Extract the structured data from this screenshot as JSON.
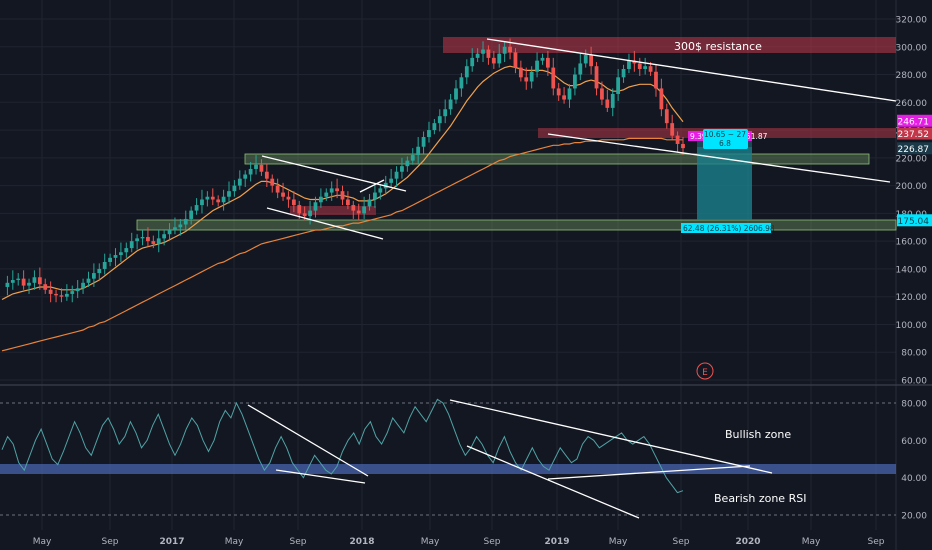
{
  "colors": {
    "background": "#131722",
    "grid": "#1f2430",
    "candle_up": "#26a69a",
    "candle_down": "#ef5350",
    "ma_fast": "#f0a04b",
    "ma_slow": "#e8833a",
    "rsi": "#4fa3a5",
    "trendline": "#ffffff",
    "resistance_zone": "#c2384a",
    "support_zone": "#6b8f5e",
    "rsi_band": "#4c6ab8",
    "measure_box": "#1a7f8c",
    "label_cyan": "#00e5ff",
    "label_magenta": "#e91ee6",
    "earnings": "#ef5350"
  },
  "chart_data": [
    {
      "type": "candlestick",
      "y_axis_ticks": [
        "320.00",
        "300.00",
        "280.00",
        "260.00",
        "240.00",
        "220.00",
        "200.00",
        "180.00",
        "160.00",
        "140.00",
        "120.00",
        "100.00",
        "80.00",
        "60.00"
      ],
      "y_scale": "linear",
      "ylim": [
        60,
        320
      ],
      "x_axis_ticks": [
        "May",
        "Sep",
        "2017",
        "May",
        "Sep",
        "2018",
        "May",
        "Sep",
        "2019",
        "May",
        "Sep",
        "2020",
        "May",
        "Sep"
      ],
      "grid": true,
      "price_labels": [
        "246.71",
        "237.52",
        "226.87",
        "175.04"
      ],
      "price_label_values": [
        246.71,
        237.52,
        226.87,
        175.04
      ],
      "annotations": {
        "resistance_text": "300$ resistance",
        "measure_up_label": "9.39 (3.87%) 751.87",
        "measure_mid_label": "10.65 ~ 27",
        "measure_mid_label_2": "6.8",
        "measure_down_label": "62.48 (26.31%) 2606.98",
        "earnings_marker": "E"
      },
      "series": [
        {
          "kind": "price",
          "y_weekly_approx": [
            127,
            130,
            132,
            133,
            128,
            130,
            134,
            129,
            125,
            122,
            121,
            120,
            122,
            124,
            126,
            130,
            133,
            137,
            140,
            145,
            148,
            150,
            152,
            155,
            160,
            162,
            163,
            160,
            158,
            162,
            165,
            168,
            170,
            172,
            176,
            182,
            186,
            190,
            192,
            190,
            188,
            192,
            196,
            200,
            205,
            208,
            212,
            215,
            210,
            205,
            200,
            195,
            192,
            190,
            186,
            180,
            178,
            182,
            188,
            192,
            195,
            198,
            196,
            190,
            186,
            182,
            180,
            185,
            190,
            195,
            198,
            202,
            205,
            210,
            214,
            218,
            222,
            228,
            235,
            240,
            245,
            250,
            255,
            262,
            270,
            278,
            286,
            292,
            295,
            298,
            292,
            288,
            295,
            300,
            296,
            285,
            278,
            275,
            282,
            290,
            292,
            285,
            270,
            265,
            262,
            270,
            280,
            288,
            294,
            286,
            270,
            262,
            256,
            266,
            278,
            284,
            290,
            288,
            284,
            286,
            282,
            270,
            255,
            245,
            236,
            230,
            227
          ]
        },
        {
          "kind": "moving_average_fast",
          "y_weekly_approx": [
            118,
            120,
            122,
            123,
            124,
            125,
            126,
            127,
            127,
            127,
            126,
            125,
            125,
            125,
            125,
            126,
            128,
            130,
            132,
            135,
            138,
            141,
            144,
            147,
            150,
            153,
            155,
            156,
            157,
            158,
            159,
            161,
            163,
            165,
            167,
            170,
            173,
            176,
            179,
            182,
            184,
            186,
            188,
            190,
            192,
            195,
            198,
            201,
            203,
            203,
            202,
            201,
            199,
            197,
            195,
            193,
            191,
            190,
            190,
            190,
            191,
            192,
            193,
            193,
            192,
            191,
            189,
            189,
            189,
            190,
            192,
            194,
            197,
            200,
            203,
            206,
            210,
            214,
            218,
            223,
            228,
            233,
            238,
            243,
            249,
            255,
            261,
            266,
            271,
            275,
            278,
            281,
            283,
            285,
            286,
            285,
            284,
            283,
            283,
            283,
            283,
            282,
            280,
            277,
            274,
            272,
            272,
            273,
            275,
            276,
            275,
            273,
            270,
            268,
            268,
            269,
            271,
            272,
            273,
            273,
            273,
            271,
            267,
            262,
            256,
            251,
            246
          ]
        },
        {
          "kind": "moving_average_slow",
          "y_weekly_approx": [
            81,
            82,
            83,
            84,
            85,
            86,
            87,
            88,
            89,
            90,
            91,
            92,
            93,
            94,
            95,
            96,
            98,
            99,
            101,
            102,
            104,
            106,
            108,
            110,
            112,
            114,
            116,
            118,
            120,
            122,
            124,
            126,
            128,
            130,
            132,
            134,
            136,
            138,
            140,
            142,
            144,
            145,
            147,
            149,
            151,
            152,
            154,
            156,
            158,
            159,
            160,
            161,
            162,
            163,
            164,
            165,
            166,
            167,
            168,
            168,
            169,
            170,
            171,
            171,
            172,
            173,
            173,
            174,
            175,
            176,
            177,
            178,
            179,
            181,
            182,
            184,
            186,
            188,
            190,
            192,
            194,
            196,
            198,
            200,
            202,
            204,
            206,
            208,
            210,
            212,
            214,
            216,
            218,
            219,
            221,
            222,
            223,
            224,
            225,
            226,
            227,
            228,
            229,
            229,
            230,
            230,
            231,
            231,
            232,
            232,
            232,
            233,
            233,
            233,
            233,
            233,
            234,
            234,
            234,
            234,
            234,
            234,
            234,
            233,
            233,
            233,
            233
          ]
        }
      ]
    },
    {
      "type": "line",
      "y_axis_ticks": [
        "80.00",
        "60.00",
        "40.00",
        "20.00"
      ],
      "ylim": [
        14,
        90
      ],
      "grid": true,
      "annotations": {
        "bullish_text": "Bullish zone",
        "bearish_text": "Bearish zone RSI"
      },
      "series": [
        {
          "kind": "rsi",
          "y_approx": [
            55,
            62,
            58,
            48,
            44,
            52,
            60,
            66,
            58,
            50,
            47,
            54,
            62,
            70,
            64,
            56,
            52,
            60,
            68,
            72,
            66,
            58,
            62,
            70,
            64,
            56,
            60,
            68,
            74,
            66,
            58,
            52,
            58,
            66,
            72,
            68,
            60,
            54,
            60,
            70,
            76,
            72,
            80,
            74,
            66,
            58,
            50,
            44,
            48,
            56,
            62,
            56,
            48,
            44,
            40,
            46,
            52,
            48,
            44,
            42,
            46,
            54,
            60,
            64,
            58,
            66,
            70,
            62,
            58,
            64,
            72,
            68,
            64,
            72,
            78,
            74,
            70,
            76,
            82,
            80,
            74,
            66,
            58,
            52,
            56,
            62,
            58,
            52,
            48,
            56,
            62,
            54,
            48,
            44,
            50,
            56,
            50,
            46,
            44,
            50,
            56,
            52,
            48,
            50,
            58,
            62,
            60,
            56,
            58,
            60,
            62,
            64,
            60,
            58,
            60,
            62,
            58,
            52,
            46,
            40,
            36,
            32,
            33
          ]
        }
      ]
    }
  ]
}
